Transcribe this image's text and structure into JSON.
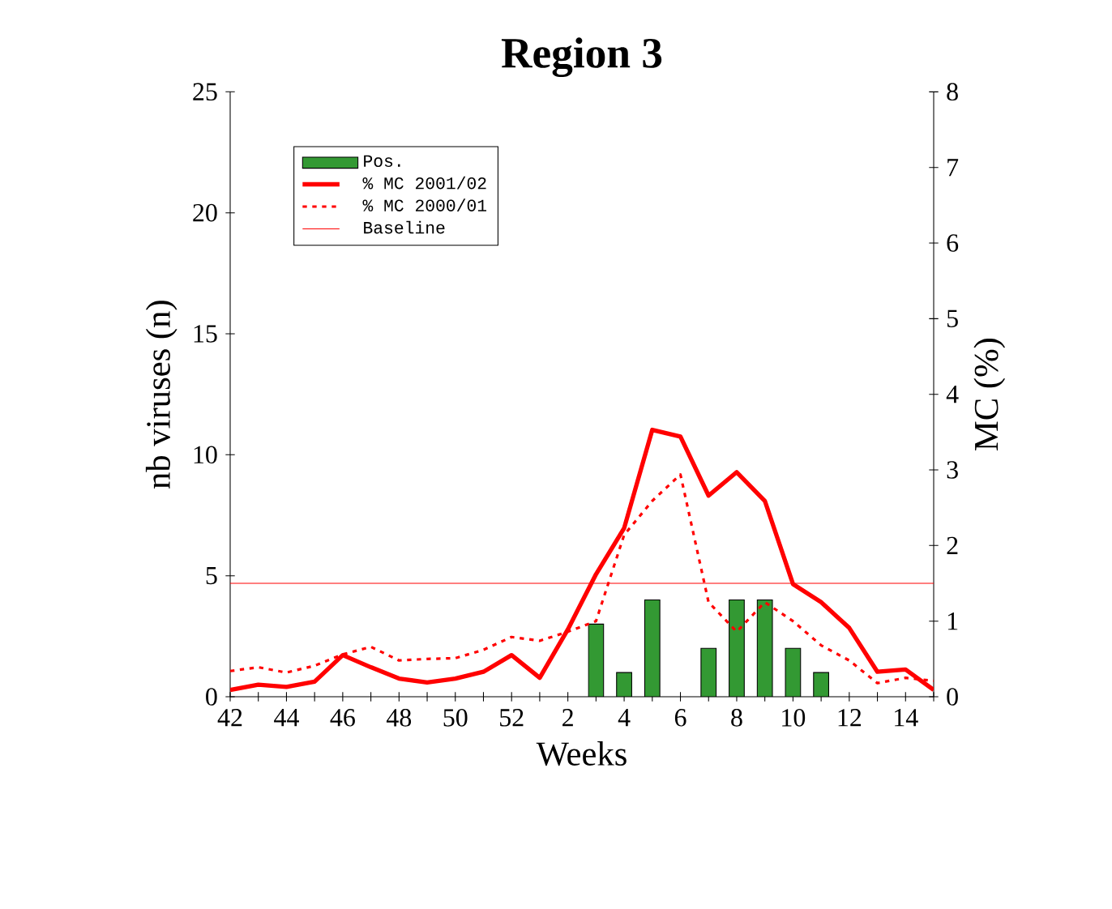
{
  "chart_data": {
    "type": "bar",
    "title": "Region 3",
    "xlabel": "Weeks",
    "ylabel": "nb viruses (n)",
    "y2label": "MC (%)",
    "categories": [
      "42",
      null,
      "44",
      null,
      "46",
      null,
      "48",
      null,
      "50",
      null,
      "52",
      null,
      "2",
      null,
      "4",
      null,
      "6",
      null,
      "8",
      null,
      "10",
      null,
      "12",
      null,
      "14",
      null
    ],
    "series": [
      {
        "name": "Pos.",
        "color": "#339933",
        "values": [
          0,
          0,
          0,
          0,
          0,
          0,
          0,
          0,
          0,
          0,
          0,
          0,
          0,
          3,
          1,
          4,
          0,
          2,
          4,
          4,
          2,
          1,
          0,
          0,
          0,
          0
        ]
      },
      {
        "name": "% MC 2001/02",
        "type": "line",
        "axis": "y2",
        "color": "#ff0000",
        "line_style": "solid",
        "values": [
          0.09,
          0.16,
          0.13,
          0.2,
          0.55,
          0.39,
          0.24,
          0.19,
          0.24,
          0.33,
          0.55,
          0.25,
          0.89,
          1.62,
          2.23,
          3.53,
          3.44,
          2.66,
          2.97,
          2.59,
          1.49,
          1.25,
          0.91,
          0.33,
          0.36,
          0.09
        ]
      },
      {
        "name": "% MC 2000/01",
        "type": "line",
        "axis": "y2",
        "color": "#ff0000",
        "line_style": "dotted",
        "values": [
          0.34,
          0.39,
          0.32,
          0.41,
          0.56,
          0.66,
          0.48,
          0.5,
          0.51,
          0.62,
          0.79,
          0.74,
          0.86,
          1.0,
          2.14,
          2.59,
          2.94,
          1.25,
          0.86,
          1.25,
          1.0,
          0.68,
          0.48,
          0.18,
          0.25,
          0.21
        ]
      }
    ],
    "ref_lines": [
      {
        "axis": "y2",
        "value": 1.5,
        "label": "Baseline",
        "color": "#ff0000"
      }
    ],
    "ylim": [
      0,
      25
    ],
    "yticks": [
      0,
      5,
      10,
      15,
      20,
      25
    ],
    "y2lim": [
      0,
      8
    ],
    "y2ticks": [
      0,
      1,
      2,
      3,
      4,
      5,
      6,
      7,
      8
    ],
    "legend": "top left"
  }
}
